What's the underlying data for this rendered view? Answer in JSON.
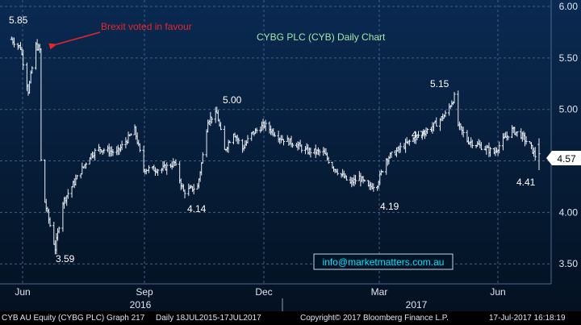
{
  "colors": {
    "background_top": "#0a2a52",
    "background_bottom": "#03101f",
    "candle": "#e9eef4",
    "grid": "#3f5f86",
    "annotation_red": "#e8262a",
    "title_green": "#9fe8a8",
    "email_cyan": "#00e5ff",
    "last_price_bg": "#ffffff"
  },
  "chart_data": {
    "type": "ohlc",
    "title": "CYBG PLC (CYB) Daily Chart",
    "ylim": [
      3.4,
      6.0
    ],
    "y_ticks": [
      "6.00",
      "5.50",
      "5.00",
      "4.50",
      "4.00",
      "3.50"
    ],
    "x_ticks": [
      "Jun",
      "Sep",
      "Dec",
      "Mar",
      "Jun"
    ],
    "year_labels": [
      "2016",
      "2017"
    ],
    "last_price": "4.57",
    "grid": true,
    "annotations": {
      "brexit": "Brexit voted in favour",
      "email": "info@marketmatters.com.au",
      "price_labels": [
        "5.85",
        "3.59",
        "4.14",
        "5.00",
        "4.19",
        "5.15",
        "4.41",
        "4.7"
      ]
    },
    "keypoints": [
      {
        "date": "2016-06-01",
        "close": 5.68
      },
      {
        "date": "2016-06-08",
        "close": 5.6
      },
      {
        "date": "2016-06-14",
        "close": 5.18
      },
      {
        "date": "2016-06-20",
        "close": 5.62
      },
      {
        "date": "2016-06-23",
        "close": 5.58
      },
      {
        "date": "2016-06-24",
        "close": 4.5
      },
      {
        "date": "2016-06-27",
        "close": 4.1
      },
      {
        "date": "2016-07-05",
        "close": 3.65
      },
      {
        "date": "2016-07-11",
        "close": 4.1
      },
      {
        "date": "2016-08-01",
        "close": 4.55
      },
      {
        "date": "2016-08-08",
        "close": 4.62
      },
      {
        "date": "2016-08-22",
        "close": 4.58
      },
      {
        "date": "2016-09-05",
        "close": 4.8
      },
      {
        "date": "2016-09-12",
        "close": 4.42
      },
      {
        "date": "2016-09-26",
        "close": 4.42
      },
      {
        "date": "2016-10-06",
        "close": 4.48
      },
      {
        "date": "2016-10-13",
        "close": 4.2
      },
      {
        "date": "2016-10-24",
        "close": 4.25
      },
      {
        "date": "2016-10-28",
        "close": 4.55
      },
      {
        "date": "2016-11-01",
        "close": 4.9
      },
      {
        "date": "2016-11-08",
        "close": 4.96
      },
      {
        "date": "2016-11-14",
        "close": 4.6
      },
      {
        "date": "2016-11-21",
        "close": 4.78
      },
      {
        "date": "2016-11-28",
        "close": 4.62
      },
      {
        "date": "2016-12-05",
        "close": 4.76
      },
      {
        "date": "2016-12-15",
        "close": 4.85
      },
      {
        "date": "2016-12-28",
        "close": 4.72
      },
      {
        "date": "2017-01-09",
        "close": 4.66
      },
      {
        "date": "2017-01-16",
        "close": 4.6
      },
      {
        "date": "2017-01-30",
        "close": 4.58
      },
      {
        "date": "2017-02-06",
        "close": 4.45
      },
      {
        "date": "2017-02-20",
        "close": 4.28
      },
      {
        "date": "2017-02-27",
        "close": 4.34
      },
      {
        "date": "2017-03-06",
        "close": 4.24
      },
      {
        "date": "2017-03-13",
        "close": 4.28
      },
      {
        "date": "2017-03-20",
        "close": 4.52
      },
      {
        "date": "2017-04-03",
        "close": 4.65
      },
      {
        "date": "2017-04-13",
        "close": 4.74
      },
      {
        "date": "2017-04-24",
        "close": 4.82
      },
      {
        "date": "2017-05-05",
        "close": 4.95
      },
      {
        "date": "2017-05-12",
        "close": 5.12
      },
      {
        "date": "2017-05-15",
        "close": 4.85
      },
      {
        "date": "2017-05-22",
        "close": 4.7
      },
      {
        "date": "2017-06-02",
        "close": 4.64
      },
      {
        "date": "2017-06-12",
        "close": 4.58
      },
      {
        "date": "2017-06-19",
        "close": 4.7
      },
      {
        "date": "2017-06-26",
        "close": 4.8
      },
      {
        "date": "2017-07-03",
        "close": 4.75
      },
      {
        "date": "2017-07-10",
        "close": 4.65
      },
      {
        "date": "2017-07-14",
        "close": 4.55
      },
      {
        "date": "2017-07-17",
        "close": 4.57
      }
    ]
  },
  "footer": {
    "left": "CYB AU Equity (CYBG PLC) Graph 217",
    "range": "Daily 18JUL2015-17JUL2017",
    "copyright": "Copyright© 2017 Bloomberg Finance L.P.",
    "timestamp": "17-Jul-2017 16:18:19"
  }
}
